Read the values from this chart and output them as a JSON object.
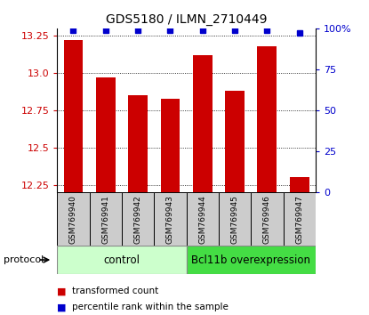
{
  "title": "GDS5180 / ILMN_2710449",
  "samples": [
    "GSM769940",
    "GSM769941",
    "GSM769942",
    "GSM769943",
    "GSM769944",
    "GSM769945",
    "GSM769946",
    "GSM769947"
  ],
  "transformed_counts": [
    13.22,
    12.97,
    12.85,
    12.83,
    13.12,
    12.88,
    13.18,
    12.3
  ],
  "percentile_ranks": [
    99,
    99,
    99,
    99,
    99,
    99,
    99,
    97
  ],
  "ylim_left": [
    12.2,
    13.3
  ],
  "yticks_left": [
    12.25,
    12.5,
    12.75,
    13.0,
    13.25
  ],
  "yticks_right": [
    0,
    25,
    50,
    75,
    100
  ],
  "bar_color": "#cc0000",
  "dot_color": "#0000cc",
  "control_samples": 4,
  "control_label": "control",
  "treatment_label": "Bcl11b overexpression",
  "control_bg": "#ccffcc",
  "treatment_bg": "#44dd44",
  "sample_bg": "#cccccc",
  "legend_bar_label": "transformed count",
  "legend_dot_label": "percentile rank within the sample",
  "protocol_label": "protocol"
}
